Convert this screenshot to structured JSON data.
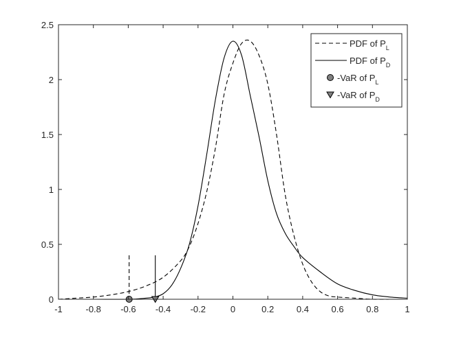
{
  "chart_data": {
    "type": "line",
    "xlim": [
      -1,
      1
    ],
    "ylim": [
      0,
      2.5
    ],
    "xticks": [
      -1,
      -0.8,
      -0.6,
      -0.4,
      -0.2,
      0,
      0.2,
      0.4,
      0.6,
      0.8,
      1
    ],
    "xtick_labels": [
      "-1",
      "-0.8",
      "-0.6",
      "-0.4",
      "-0.2",
      "0",
      "0.2",
      "0.4",
      "0.6",
      "0.8",
      "1"
    ],
    "yticks": [
      0,
      0.5,
      1,
      1.5,
      2,
      2.5
    ],
    "ytick_labels": [
      "0",
      "0.5",
      "1",
      "1.5",
      "2",
      "2.5"
    ],
    "grid": false,
    "legend_position": "top-right",
    "series": [
      {
        "name": "PDF of P_L",
        "legend_main": "PDF of P",
        "legend_sub": "L",
        "style": "dashed",
        "color": "#000000",
        "x": [
          -1.0,
          -0.9,
          -0.8,
          -0.7,
          -0.6,
          -0.5,
          -0.4,
          -0.3,
          -0.25,
          -0.2,
          -0.15,
          -0.1,
          -0.05,
          0.0,
          0.05,
          0.1,
          0.15,
          0.2,
          0.25,
          0.3,
          0.35,
          0.4,
          0.45,
          0.5,
          0.55,
          0.6,
          0.7,
          0.8,
          0.9,
          1.0
        ],
        "y": [
          0.0,
          0.01,
          0.02,
          0.04,
          0.07,
          0.12,
          0.2,
          0.35,
          0.48,
          0.69,
          0.98,
          1.38,
          1.87,
          2.15,
          2.33,
          2.35,
          2.22,
          1.96,
          1.5,
          0.95,
          0.58,
          0.32,
          0.16,
          0.07,
          0.03,
          0.02,
          0.01,
          0.0,
          0.0,
          0.0
        ]
      },
      {
        "name": "PDF of P_D",
        "legend_main": "PDF of P",
        "legend_sub": "D",
        "style": "solid",
        "color": "#000000",
        "x": [
          -1.0,
          -0.8,
          -0.6,
          -0.5,
          -0.45,
          -0.4,
          -0.35,
          -0.3,
          -0.25,
          -0.2,
          -0.15,
          -0.1,
          -0.05,
          0.0,
          0.05,
          0.1,
          0.15,
          0.2,
          0.25,
          0.3,
          0.35,
          0.4,
          0.5,
          0.6,
          0.7,
          0.8,
          0.9,
          1.0
        ],
        "y": [
          0.0,
          0.0,
          0.0,
          0.01,
          0.02,
          0.05,
          0.13,
          0.28,
          0.5,
          0.85,
          1.32,
          1.82,
          2.2,
          2.35,
          2.22,
          1.85,
          1.48,
          1.08,
          0.78,
          0.6,
          0.48,
          0.38,
          0.25,
          0.14,
          0.08,
          0.04,
          0.02,
          0.01
        ]
      }
    ],
    "markers": [
      {
        "name": "-VaR of P_L",
        "legend_main": "-VaR of P",
        "legend_sub": "L",
        "shape": "circle",
        "fill": "#808080",
        "x": -0.595,
        "y": 0,
        "vline": {
          "y_top": 0.4,
          "style": "dashed"
        }
      },
      {
        "name": "-VaR of P_D",
        "legend_main": "-VaR of P",
        "legend_sub": "D",
        "shape": "triangle-down",
        "fill": "#808080",
        "x": -0.445,
        "y": 0,
        "vline": {
          "y_top": 0.4,
          "style": "solid"
        }
      }
    ]
  }
}
